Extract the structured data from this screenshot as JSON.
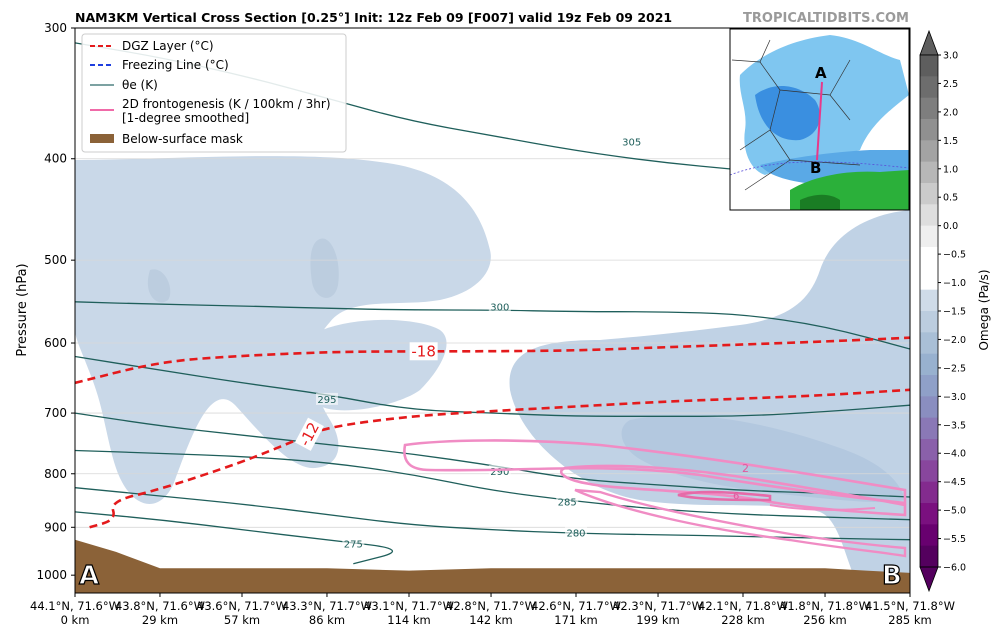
{
  "header": {
    "title": "NAM3KM Vertical Cross Section [0.25°] Init: 12z Feb 09 [F007] valid 19z Feb 09 2021",
    "watermark": "TROPICALTIDBITS.COM"
  },
  "legend": {
    "items": [
      {
        "label": "DGZ Layer (°C)",
        "color": "#e41a1c",
        "style": "dashed"
      },
      {
        "label": "Freezing Line (°C)",
        "color": "#1f3fdf",
        "style": "dashed"
      },
      {
        "label": "θe (K)",
        "color": "#2d6b6a",
        "style": "solid"
      },
      {
        "label": "2D frontogenesis (K / 100km / 3hr)",
        "label2": "[1-degree smoothed]",
        "color": "#f06aa8",
        "style": "solid"
      },
      {
        "label": "Below-surface mask",
        "color": "#8b6238",
        "style": "patch"
      }
    ]
  },
  "inset": {
    "label_a": "A",
    "label_b": "B"
  },
  "endpoints": {
    "a": "A",
    "b": "B"
  },
  "chart_data": {
    "type": "cross-section",
    "ylabel": "Pressure (hPa)",
    "ylim": [
      1040,
      300
    ],
    "yscale": "log",
    "yticks": [
      300,
      400,
      500,
      600,
      700,
      800,
      900,
      1000
    ],
    "x_km": [
      0,
      29,
      57,
      86,
      114,
      142,
      171,
      199,
      228,
      256,
      285
    ],
    "x_labels": [
      {
        "coord": "44.1°N, 71.6°W",
        "km": "0 km"
      },
      {
        "coord": "43.8°N, 71.6°W",
        "km": "29 km"
      },
      {
        "coord": "43.6°N, 71.7°W",
        "km": "57 km"
      },
      {
        "coord": "43.3°N, 71.7°W",
        "km": "86 km"
      },
      {
        "coord": "43.1°N, 71.7°W",
        "km": "114 km"
      },
      {
        "coord": "42.8°N, 71.7°W",
        "km": "142 km"
      },
      {
        "coord": "42.6°N, 71.7°W",
        "km": "171 km"
      },
      {
        "coord": "42.3°N, 71.7°W",
        "km": "199 km"
      },
      {
        "coord": "42.1°N, 71.8°W",
        "km": "228 km"
      },
      {
        "coord": "41.8°N, 71.8°W",
        "km": "256 km"
      },
      {
        "coord": "41.5°N, 71.8°W",
        "km": "285 km"
      }
    ],
    "colorbar": {
      "label": "Omega (Pa/s)",
      "ticks": [
        "3.0",
        "2.5",
        "2.0",
        "1.5",
        "1.0",
        "0.5",
        "0.0",
        "−0.5",
        "−1.0",
        "−1.5",
        "−2.0",
        "−2.5",
        "−3.0",
        "−3.5",
        "−4.0",
        "−4.5",
        "−5.0",
        "−5.5",
        "−6.0"
      ],
      "colors": [
        "#5e5e5e",
        "#6d6d6d",
        "#7e7e7e",
        "#909090",
        "#a3a3a3",
        "#b7b7b7",
        "#cbcbcb",
        "#dedede",
        "#efefef",
        "#ffffff",
        "#ffffff",
        "#cfdbe8",
        "#bccddf",
        "#a9bfd6",
        "#98b1cf",
        "#8fa0c8",
        "#8a8ec0",
        "#8a78b6",
        "#8a60aa",
        "#88469d",
        "#832b8e",
        "#7a107f",
        "#68006f",
        "#54005e"
      ]
    },
    "dgz": [
      {
        "label": "-18",
        "points": [
          [
            0,
            655
          ],
          [
            29,
            625
          ],
          [
            57,
            617
          ],
          [
            86,
            612
          ],
          [
            114,
            611
          ],
          [
            142,
            611
          ],
          [
            171,
            610
          ],
          [
            199,
            606
          ],
          [
            228,
            602
          ],
          [
            256,
            598
          ],
          [
            285,
            593
          ]
        ]
      },
      {
        "label": "-12",
        "points": [
          [
            5,
            900
          ],
          [
            14,
            885
          ],
          [
            12,
            850
          ],
          [
            29,
            828
          ],
          [
            57,
            780
          ],
          [
            76,
            742
          ],
          [
            86,
            722
          ],
          [
            114,
            705
          ],
          [
            142,
            697
          ],
          [
            171,
            690
          ],
          [
            199,
            683
          ],
          [
            228,
            678
          ],
          [
            256,
            673
          ],
          [
            285,
            665
          ]
        ]
      }
    ],
    "theta_e": [
      {
        "label": "305",
        "label_at": [
          190,
          386
        ],
        "points": [
          [
            0,
            310
          ],
          [
            29,
            320
          ],
          [
            57,
            333
          ],
          [
            86,
            350
          ],
          [
            114,
            368
          ],
          [
            142,
            380
          ],
          [
            171,
            393
          ],
          [
            199,
            403
          ],
          [
            228,
            410
          ],
          [
            256,
            418
          ],
          [
            285,
            423
          ]
        ]
      },
      {
        "label": "300",
        "label_at": [
          145,
          555
        ],
        "points": [
          [
            0,
            548
          ],
          [
            29,
            551
          ],
          [
            57,
            553
          ],
          [
            86,
            556
          ],
          [
            114,
            558
          ],
          [
            142,
            558
          ],
          [
            171,
            560
          ],
          [
            199,
            560
          ],
          [
            228,
            563
          ],
          [
            256,
            578
          ],
          [
            285,
            608
          ]
        ]
      },
      {
        "label": "295",
        "label_at": [
          86,
          680
        ],
        "points": [
          [
            0,
            618
          ],
          [
            29,
            637
          ],
          [
            57,
            655
          ],
          [
            86,
            672
          ],
          [
            114,
            695
          ],
          [
            142,
            700
          ],
          [
            171,
            705
          ],
          [
            199,
            705
          ],
          [
            228,
            705
          ],
          [
            256,
            698
          ],
          [
            285,
            688
          ]
        ]
      },
      {
        "label": "290",
        "label_at": [
          145,
          797
        ],
        "points": [
          [
            0,
            700
          ],
          [
            29,
            720
          ],
          [
            57,
            735
          ],
          [
            86,
            750
          ],
          [
            114,
            765
          ],
          [
            142,
            785
          ],
          [
            171,
            810
          ],
          [
            199,
            820
          ],
          [
            228,
            830
          ],
          [
            256,
            835
          ],
          [
            285,
            842
          ]
        ]
      },
      {
        "label": "285",
        "label_at": [
          168,
          852
        ],
        "points": [
          [
            0,
            760
          ],
          [
            29,
            765
          ],
          [
            57,
            770
          ],
          [
            86,
            780
          ],
          [
            114,
            800
          ],
          [
            142,
            830
          ],
          [
            171,
            850
          ],
          [
            199,
            865
          ],
          [
            228,
            875
          ],
          [
            256,
            880
          ],
          [
            285,
            885
          ]
        ]
      },
      {
        "label": "280",
        "label_at": [
          171,
          912
        ],
        "points": [
          [
            0,
            825
          ],
          [
            29,
            840
          ],
          [
            57,
            855
          ],
          [
            86,
            875
          ],
          [
            114,
            895
          ],
          [
            142,
            905
          ],
          [
            171,
            912
          ],
          [
            199,
            915
          ],
          [
            228,
            918
          ],
          [
            256,
            922
          ],
          [
            285,
            925
          ]
        ]
      },
      {
        "label": "275",
        "label_at": [
          95,
          935
        ],
        "points": [
          [
            0,
            870
          ],
          [
            29,
            885
          ],
          [
            57,
            905
          ],
          [
            86,
            925
          ],
          [
            114,
            945
          ],
          [
            95,
            975
          ]
        ]
      }
    ],
    "frontogenesis": {
      "contour_labels": [
        "2",
        "6"
      ]
    },
    "surface_hpa": [
      925,
      950,
      985,
      985,
      985,
      990,
      985,
      985,
      985,
      985,
      985,
      990,
      995
    ],
    "surface_km": [
      0,
      14,
      29,
      57,
      86,
      114,
      142,
      171,
      199,
      228,
      256,
      270,
      285
    ]
  }
}
